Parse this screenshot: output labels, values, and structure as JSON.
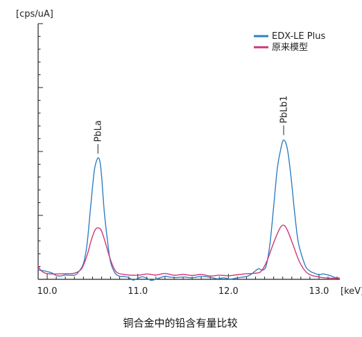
{
  "chart_data": {
    "type": "line",
    "title": "",
    "caption": "铜合金中的铅含有量比较",
    "ylabel_unit": "[cps/uA]",
    "xlabel_unit": "[keV]",
    "xlim": [
      9.9,
      13.23
    ],
    "ylim": [
      0,
      100
    ],
    "x_ticks": [
      {
        "value": 10.0,
        "label": "10.0"
      },
      {
        "value": 11.0,
        "label": "11.0"
      },
      {
        "value": 12.0,
        "label": "12.0"
      },
      {
        "value": 13.0,
        "label": "13.0"
      }
    ],
    "y_ticks_count": 5,
    "grid": false,
    "legend_position": "top-right",
    "series": [
      {
        "name": "EDX-LE Plus",
        "color": "#2f7fc1",
        "points": [
          [
            9.9,
            3.7
          ],
          [
            9.98,
            3.2
          ],
          [
            10.05,
            2.5
          ],
          [
            10.1,
            1.5
          ],
          [
            10.15,
            1.3
          ],
          [
            10.2,
            1.7
          ],
          [
            10.3,
            1.6
          ],
          [
            10.35,
            3.1
          ],
          [
            10.4,
            6.2
          ],
          [
            10.44,
            13.8
          ],
          [
            10.48,
            28.5
          ],
          [
            10.52,
            42.5
          ],
          [
            10.555,
            47.2
          ],
          [
            10.58,
            46.4
          ],
          [
            10.6,
            40.5
          ],
          [
            10.63,
            26.5
          ],
          [
            10.67,
            13.8
          ],
          [
            10.7,
            6.7
          ],
          [
            10.75,
            2.4
          ],
          [
            10.8,
            1.2
          ],
          [
            10.85,
            1.1
          ],
          [
            10.9,
            0.7
          ],
          [
            10.95,
            -0.3
          ],
          [
            11.0,
            0.4
          ],
          [
            11.05,
            1.0
          ],
          [
            11.1,
            0.4
          ],
          [
            11.15,
            -0.4
          ],
          [
            11.22,
            0.3
          ],
          [
            11.3,
            1.2
          ],
          [
            11.35,
            0.9
          ],
          [
            11.42,
            0.7
          ],
          [
            11.5,
            0.9
          ],
          [
            11.6,
            0.6
          ],
          [
            11.7,
            1.1
          ],
          [
            11.8,
            0.8
          ],
          [
            11.88,
            0.2
          ],
          [
            11.95,
            0.6
          ],
          [
            12.02,
            0.1
          ],
          [
            12.1,
            0.6
          ],
          [
            12.2,
            1.1
          ],
          [
            12.26,
            2.2
          ],
          [
            12.33,
            4.1
          ],
          [
            12.38,
            3.6
          ],
          [
            12.42,
            5.7
          ],
          [
            12.46,
            14.2
          ],
          [
            12.5,
            28.5
          ],
          [
            12.54,
            43.3
          ],
          [
            12.58,
            51.2
          ],
          [
            12.61,
            54.5
          ],
          [
            12.65,
            51.2
          ],
          [
            12.69,
            40.5
          ],
          [
            12.73,
            26.5
          ],
          [
            12.77,
            14.8
          ],
          [
            12.82,
            8.2
          ],
          [
            12.86,
            4.6
          ],
          [
            12.91,
            3.0
          ],
          [
            12.95,
            2.4
          ],
          [
            13.0,
            1.8
          ],
          [
            13.05,
            2.1
          ],
          [
            13.12,
            1.5
          ],
          [
            13.18,
            0.7
          ],
          [
            13.23,
            0.5
          ]
        ]
      },
      {
        "name": "原来模型",
        "color": "#d03578",
        "points": [
          [
            9.9,
            5.2
          ],
          [
            9.93,
            3.5
          ],
          [
            9.98,
            2.4
          ],
          [
            10.05,
            2.1
          ],
          [
            10.2,
            2.2
          ],
          [
            10.3,
            2.4
          ],
          [
            10.38,
            4.2
          ],
          [
            10.44,
            9.4
          ],
          [
            10.49,
            15.7
          ],
          [
            10.53,
            19.4
          ],
          [
            10.565,
            20.1
          ],
          [
            10.6,
            18.9
          ],
          [
            10.65,
            13.4
          ],
          [
            10.7,
            7.5
          ],
          [
            10.76,
            3.0
          ],
          [
            10.85,
            1.9
          ],
          [
            11.0,
            1.6
          ],
          [
            11.1,
            2.1
          ],
          [
            11.2,
            1.7
          ],
          [
            11.3,
            2.3
          ],
          [
            11.4,
            1.6
          ],
          [
            11.5,
            1.9
          ],
          [
            11.6,
            1.5
          ],
          [
            11.7,
            1.9
          ],
          [
            11.8,
            1.3
          ],
          [
            11.9,
            1.6
          ],
          [
            12.0,
            1.4
          ],
          [
            12.1,
            1.8
          ],
          [
            12.2,
            2.2
          ],
          [
            12.3,
            2.4
          ],
          [
            12.36,
            3.1
          ],
          [
            12.42,
            6.7
          ],
          [
            12.48,
            12.4
          ],
          [
            12.53,
            17.0
          ],
          [
            12.58,
            20.6
          ],
          [
            12.62,
            21.0
          ],
          [
            12.66,
            18.5
          ],
          [
            12.72,
            12.9
          ],
          [
            12.78,
            7.2
          ],
          [
            12.84,
            3.6
          ],
          [
            12.9,
            1.8
          ],
          [
            13.0,
            0.9
          ],
          [
            13.1,
            0.5
          ],
          [
            13.23,
            0.4
          ]
        ]
      }
    ],
    "annotations": [
      {
        "text": "PbLa",
        "x": 10.56,
        "y": 47.2
      },
      {
        "text": "PbLb1",
        "x": 12.61,
        "y": 54.5
      }
    ]
  }
}
